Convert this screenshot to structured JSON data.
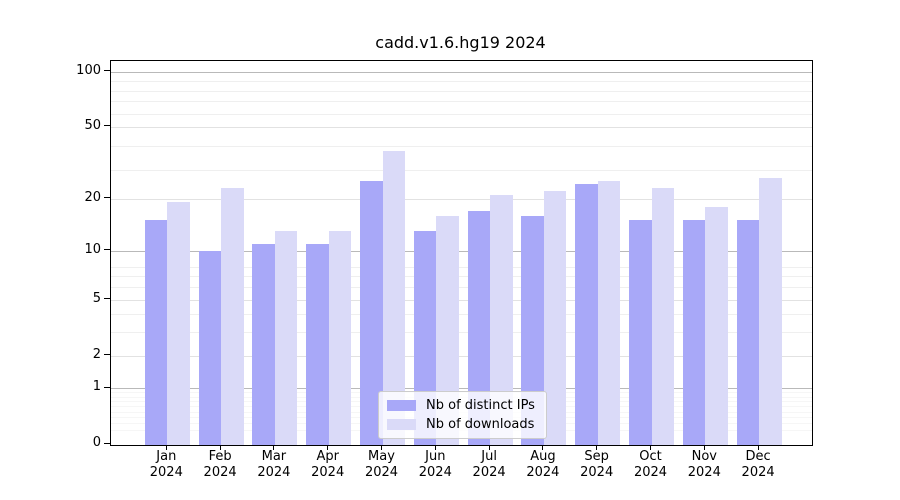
{
  "chart_data": {
    "type": "bar",
    "title": "cadd.v1.6.hg19 2024",
    "categories": [
      "Jan 2024",
      "Feb 2024",
      "Mar 2024",
      "Apr 2024",
      "May 2024",
      "Jun 2024",
      "Jul 2024",
      "Aug 2024",
      "Sep 2024",
      "Oct 2024",
      "Nov 2024",
      "Dec 2024"
    ],
    "series": [
      {
        "name": "Nb of distinct IPs",
        "color": "#a8a8f8",
        "values": [
          15,
          10,
          11,
          11,
          25,
          13,
          17,
          16,
          24,
          15,
          15,
          15
        ]
      },
      {
        "name": "Nb of downloads",
        "color": "#dadaf8",
        "values": [
          19,
          23,
          13,
          13,
          37,
          16,
          21,
          22,
          25,
          23,
          18,
          26
        ]
      }
    ],
    "yscale": "log10(1+y)",
    "ylim": [
      0,
      114
    ],
    "yticks": [
      0,
      1,
      2,
      5,
      10,
      20,
      50,
      100
    ],
    "major_dark_gridlines": [
      1,
      10,
      100
    ],
    "minor_gridlines": [
      3,
      4,
      6,
      7,
      8,
      29,
      39,
      59,
      69,
      79,
      89
    ],
    "sub1_minor_gridlines": [
      0.2,
      0.3,
      0.4,
      0.5,
      0.6,
      0.7,
      0.8,
      0.9
    ],
    "grid": true,
    "legend_position": "lower center",
    "xlabel": "",
    "ylabel": ""
  }
}
